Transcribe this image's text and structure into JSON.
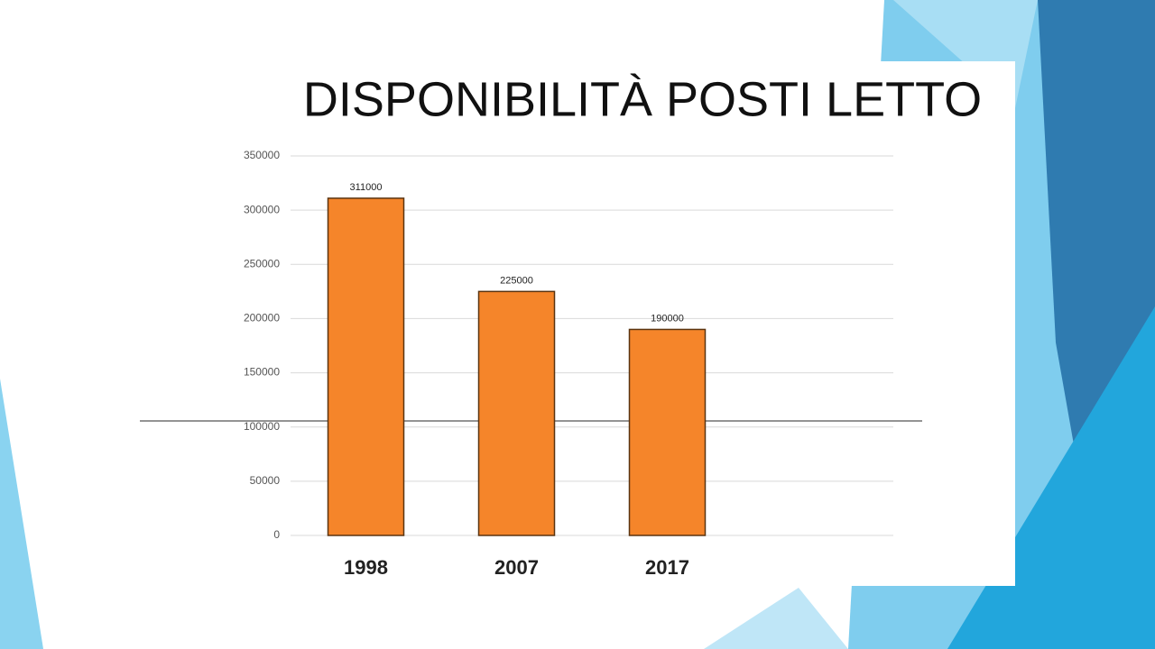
{
  "chart_data": {
    "type": "bar",
    "title": "DISPONIBILITÀ POSTI LETTO",
    "categories": [
      "1998",
      "2007",
      "2017"
    ],
    "values": [
      311000,
      225000,
      190000
    ],
    "color": "#f5852a",
    "ylim": [
      0,
      350000
    ],
    "yticks": [
      0,
      50000,
      100000,
      150000,
      200000,
      250000,
      300000,
      350000
    ],
    "grid": true
  }
}
